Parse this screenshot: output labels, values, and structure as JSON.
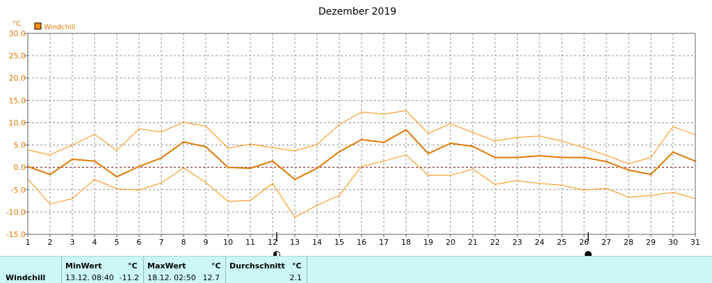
{
  "chart_data": {
    "type": "line",
    "title": "Dezember 2019",
    "ylabel": "°C",
    "legend": {
      "label": "Windchill",
      "position": "top-left",
      "color": "#e07800"
    },
    "x": [
      1,
      2,
      3,
      4,
      5,
      6,
      7,
      8,
      9,
      10,
      11,
      12,
      13,
      14,
      15,
      16,
      17,
      18,
      19,
      20,
      21,
      22,
      23,
      24,
      25,
      26,
      27,
      28,
      29,
      30,
      31
    ],
    "ylim": [
      -15,
      30
    ],
    "yticks": [
      "30.0",
      "25.0",
      "20.0",
      "15.0",
      "10.0",
      "5.0",
      "0.0",
      "-5.0",
      "-10.0",
      "-15.0"
    ],
    "grid": true,
    "series": [
      {
        "role": "max",
        "values": [
          3.9,
          2.8,
          5.0,
          7.4,
          3.8,
          8.6,
          7.9,
          10.1,
          9.2,
          4.3,
          5.2,
          4.4,
          3.7,
          5.1,
          9.6,
          12.4,
          11.9,
          12.7,
          7.6,
          9.8,
          7.8,
          5.9,
          6.7,
          7.0,
          5.9,
          4.4,
          2.7,
          0.8,
          2.2,
          9.1,
          7.3
        ]
      },
      {
        "role": "avg",
        "values": [
          0.2,
          -1.6,
          1.8,
          1.4,
          -2.1,
          0.2,
          2.1,
          5.7,
          4.6,
          0.0,
          -0.2,
          1.4,
          -2.7,
          -0.2,
          3.5,
          6.2,
          5.6,
          8.4,
          3.1,
          5.4,
          4.7,
          2.2,
          2.2,
          2.6,
          2.2,
          2.2,
          1.3,
          -0.6,
          -1.6,
          3.4,
          1.4
        ]
      },
      {
        "role": "min",
        "values": [
          -2.6,
          -8.2,
          -7.0,
          -2.7,
          -4.8,
          -5.1,
          -3.5,
          -0.1,
          -3.4,
          -7.6,
          -7.4,
          -3.6,
          -11.2,
          -8.5,
          -6.3,
          0.2,
          1.4,
          2.8,
          -1.8,
          -1.8,
          -0.4,
          -3.8,
          -3.0,
          -3.6,
          -4.0,
          -5.1,
          -4.7,
          -6.7,
          -6.3,
          -5.6,
          -7.0
        ]
      }
    ],
    "moon_phases": [
      {
        "day": 12,
        "phase": "first-quarter"
      },
      {
        "day": 26,
        "phase": "new-moon"
      }
    ],
    "colors": {
      "avg": "#e07800",
      "band": "#ff8c00",
      "grid": "#909090",
      "zero_line": "#8b0000"
    }
  },
  "stats": {
    "row_label": "Windchill",
    "unit": "°C",
    "min": {
      "header": "MinWert",
      "date": "13.12.",
      "time": "08:40",
      "value": "-11.2"
    },
    "max": {
      "header": "MaxWert",
      "date": "18.12.",
      "time": "02:50",
      "value": "12.7"
    },
    "avg": {
      "header": "Durchschnitt",
      "value": "2.1"
    }
  }
}
